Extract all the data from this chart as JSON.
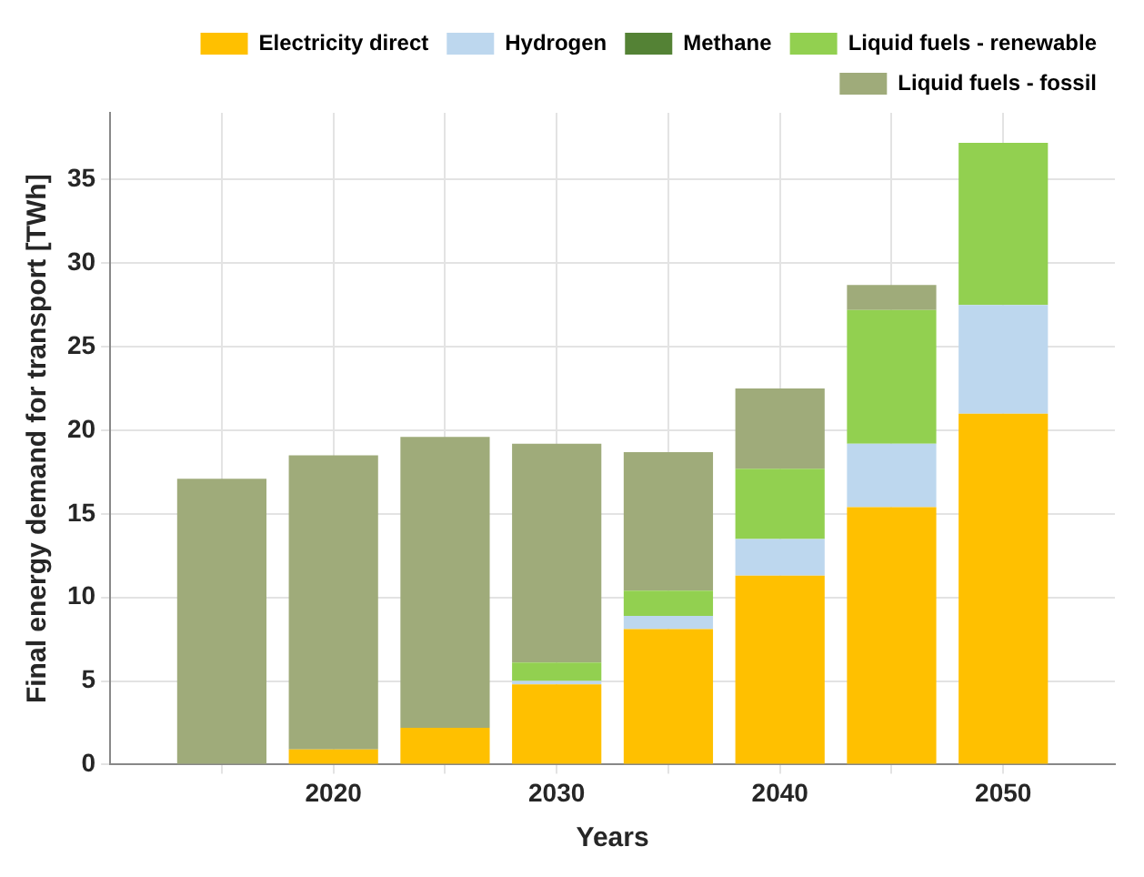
{
  "chart_data": {
    "type": "bar",
    "stacked": true,
    "xlabel": "Years",
    "ylabel": "Final energy demand for transport [TWh]",
    "x": [
      2015,
      2020,
      2025,
      2030,
      2035,
      2040,
      2045,
      2050
    ],
    "series": [
      {
        "name": "Electricity direct",
        "color": "#ffc000",
        "values": [
          0,
          0.9,
          2.2,
          4.8,
          8.1,
          11.3,
          15.4,
          21.0
        ]
      },
      {
        "name": "Hydrogen",
        "color": "#bdd7ee",
        "values": [
          0,
          0,
          0,
          0.2,
          0.8,
          2.2,
          3.8,
          6.5
        ]
      },
      {
        "name": "Methane",
        "color": "#548235",
        "values": [
          0,
          0,
          0,
          0,
          0,
          0,
          0,
          0
        ]
      },
      {
        "name": "Liquid fuels - renewable",
        "color": "#92d050",
        "values": [
          0,
          0,
          0,
          1.1,
          1.5,
          4.2,
          8.0,
          9.7
        ]
      },
      {
        "name": "Liquid fuels - fossil",
        "color": "#9fab7a",
        "values": [
          17.1,
          17.6,
          17.4,
          13.1,
          8.3,
          4.8,
          1.5,
          0
        ]
      }
    ],
    "xlim": [
      2010,
      2055
    ],
    "xticks": [
      {
        "value": 2015,
        "label": null
      },
      2020,
      {
        "value": 2025,
        "label": null
      },
      2030,
      {
        "value": 2035,
        "label": null
      },
      2040,
      {
        "value": 2045,
        "label": null
      },
      2050
    ],
    "ylim": [
      0,
      39
    ],
    "yticks": [
      0,
      5,
      10,
      15,
      20,
      25,
      30,
      35
    ],
    "grid": true,
    "legend": "top right"
  }
}
